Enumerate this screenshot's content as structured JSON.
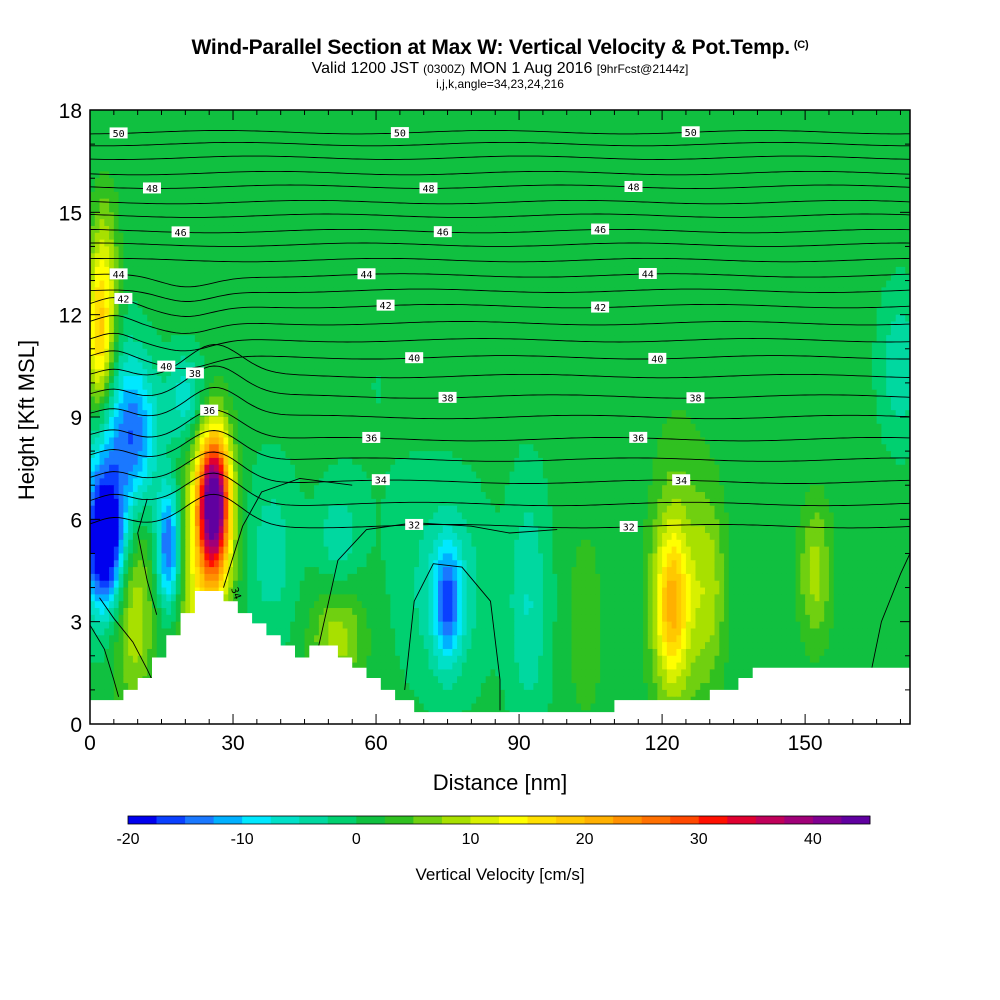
{
  "header": {
    "title": "Wind-Parallel Section at Max W: Vertical Velocity & Pot.Temp.",
    "copyright": "(C)",
    "valid_prefix": "Valid 1200 JST ",
    "valid_z": "(0300Z)",
    "valid_date": " MON 1 Aug 2016 ",
    "forecast": "[9hrFcst@2144z]",
    "indices": "i,j,k,angle=34,23,24,216"
  },
  "chart_data": {
    "type": "heatmap",
    "xlabel": "Distance [nm]",
    "ylabel": "Height [Kft MSL]",
    "xlim": [
      0,
      172
    ],
    "ylim": [
      0,
      18
    ],
    "x_ticks": [
      "0",
      "30",
      "60",
      "90",
      "120",
      "150"
    ],
    "x_tick_values": [
      0,
      30,
      60,
      90,
      120,
      150
    ],
    "y_ticks": [
      "0",
      "3",
      "6",
      "9",
      "12",
      "15",
      "18"
    ],
    "y_tick_values": [
      0,
      3,
      6,
      9,
      12,
      15,
      18
    ],
    "colorbar": {
      "title": "Vertical Velocity [cm/s]",
      "min": -20,
      "max": 45,
      "step": 2.5,
      "tick_labels": [
        "-20",
        "-10",
        "0",
        "10",
        "20",
        "30",
        "40"
      ],
      "tick_values": [
        -20,
        -10,
        0,
        10,
        20,
        30,
        40
      ],
      "colors": [
        "#0000ee",
        "#0a40ff",
        "#1a78ff",
        "#00b0ff",
        "#00e8ff",
        "#00e0c8",
        "#00d8a0",
        "#00d070",
        "#10c040",
        "#30c020",
        "#70d010",
        "#a8e000",
        "#d8f000",
        "#ffff00",
        "#ffe000",
        "#ffc800",
        "#ffb000",
        "#ff9000",
        "#ff7000",
        "#ff4800",
        "#ff1000",
        "#e00030",
        "#c0005a",
        "#a00078",
        "#800090",
        "#6000a0"
      ]
    },
    "background_value": 1,
    "w_cells": [
      {
        "x": 3,
        "y": 5.2,
        "sx": 3,
        "sy": 1.3,
        "v": -20
      },
      {
        "x": 4,
        "y": 7.5,
        "sx": 4,
        "sy": 2.5,
        "v": -12
      },
      {
        "x": 10,
        "y": 8.5,
        "sx": 3,
        "sy": 1.5,
        "v": -12
      },
      {
        "x": 2,
        "y": 11,
        "sx": 2.2,
        "sy": 1.6,
        "v": 18
      },
      {
        "x": 3,
        "y": 13.5,
        "sx": 2,
        "sy": 1.5,
        "v": 8
      },
      {
        "x": 9,
        "y": 3.5,
        "sx": 3,
        "sy": 2,
        "v": 10
      },
      {
        "x": 16.5,
        "y": 5.2,
        "sx": 1.8,
        "sy": 1.3,
        "v": -18
      },
      {
        "x": 20,
        "y": 9.5,
        "sx": 3,
        "sy": 1,
        "v": -8
      },
      {
        "x": 26,
        "y": 6.5,
        "sx": 2.3,
        "sy": 1.4,
        "v": 42
      },
      {
        "x": 24,
        "y": 4.5,
        "sx": 4,
        "sy": 2.5,
        "v": 12
      },
      {
        "x": 38,
        "y": 5,
        "sx": 4,
        "sy": 1.8,
        "v": -5
      },
      {
        "x": 52,
        "y": 2.5,
        "sx": 4,
        "sy": 1,
        "v": 8
      },
      {
        "x": 52,
        "y": 5.5,
        "sx": 3,
        "sy": 1,
        "v": -5
      },
      {
        "x": 75,
        "y": 3.5,
        "sx": 2,
        "sy": 1.2,
        "v": -12
      },
      {
        "x": 75,
        "y": 4,
        "sx": 6,
        "sy": 2,
        "v": -6
      },
      {
        "x": 92,
        "y": 3.5,
        "sx": 3,
        "sy": 2.5,
        "v": -6
      },
      {
        "x": 104,
        "y": 3,
        "sx": 2.5,
        "sy": 2,
        "v": 4
      },
      {
        "x": 122,
        "y": 3.5,
        "sx": 2.5,
        "sy": 1.5,
        "v": 14
      },
      {
        "x": 123,
        "y": 4,
        "sx": 4,
        "sy": 3,
        "v": 7
      },
      {
        "x": 130,
        "y": 4,
        "sx": 2.5,
        "sy": 2,
        "v": 7
      },
      {
        "x": 152,
        "y": 4.5,
        "sx": 2.5,
        "sy": 1.5,
        "v": 8
      },
      {
        "x": 170,
        "y": 10.5,
        "sx": 3,
        "sy": 1.5,
        "v": -6
      },
      {
        "x": 60,
        "y": 10,
        "sx": 8,
        "sy": 5,
        "v": -1
      },
      {
        "x": 110,
        "y": 12,
        "sx": 6,
        "sy": 6,
        "v": -1
      },
      {
        "x": 145,
        "y": 10,
        "sx": 6,
        "sy": 6,
        "v": -1
      }
    ],
    "terrain": [
      [
        0,
        0.7
      ],
      [
        7,
        0.7
      ],
      [
        7,
        1.0
      ],
      [
        10,
        1.0
      ],
      [
        10,
        1.35
      ],
      [
        13,
        1.35
      ],
      [
        13,
        1.95
      ],
      [
        16,
        1.95
      ],
      [
        16,
        2.6
      ],
      [
        19,
        2.6
      ],
      [
        19,
        3.25
      ],
      [
        22,
        3.25
      ],
      [
        22,
        3.9
      ],
      [
        28,
        3.9
      ],
      [
        28,
        3.6
      ],
      [
        31,
        3.6
      ],
      [
        31,
        3.25
      ],
      [
        34,
        3.25
      ],
      [
        34,
        2.95
      ],
      [
        37,
        2.95
      ],
      [
        37,
        2.6
      ],
      [
        40,
        2.6
      ],
      [
        40,
        2.3
      ],
      [
        43,
        2.3
      ],
      [
        43,
        1.95
      ],
      [
        46,
        1.95
      ],
      [
        46,
        2.3
      ],
      [
        52,
        2.3
      ],
      [
        52,
        1.95
      ],
      [
        55,
        1.95
      ],
      [
        55,
        1.65
      ],
      [
        58,
        1.65
      ],
      [
        58,
        1.35
      ],
      [
        61,
        1.35
      ],
      [
        61,
        1.0
      ],
      [
        64,
        1.0
      ],
      [
        64,
        0.7
      ],
      [
        68,
        0.7
      ],
      [
        68,
        0.35
      ],
      [
        110,
        0.35
      ],
      [
        110,
        0.7
      ],
      [
        130,
        0.7
      ],
      [
        130,
        1.0
      ],
      [
        136,
        1.0
      ],
      [
        136,
        1.35
      ],
      [
        139,
        1.35
      ],
      [
        139,
        1.65
      ],
      [
        172,
        1.65
      ]
    ],
    "theta_levels": [
      {
        "base": 17.35,
        "label": "50",
        "label_x": [
          6,
          65,
          126
        ]
      },
      {
        "base": 17.0
      },
      {
        "base": 16.6
      },
      {
        "base": 16.15
      },
      {
        "base": 15.75,
        "label": "48",
        "label_x": [
          13,
          71,
          114
        ]
      },
      {
        "base": 15.3
      },
      {
        "base": 14.9
      },
      {
        "base": 14.45,
        "label": "46",
        "label_x": [
          19,
          74,
          107
        ]
      },
      {
        "base": 14.05
      },
      {
        "base": 13.6
      },
      {
        "base": 13.15,
        "label": "44",
        "label_x": [
          6,
          58,
          117
        ]
      },
      {
        "base": 12.7
      },
      {
        "base": 12.25,
        "label": "42",
        "label_x": [
          7,
          62,
          107
        ]
      },
      {
        "base": 11.75
      },
      {
        "base": 11.25
      },
      {
        "base": 10.75,
        "label": "40",
        "label_x": [
          16,
          68,
          119
        ]
      },
      {
        "base": 10.2
      },
      {
        "base": 9.6,
        "label": "38",
        "label_x": [
          22,
          75,
          127
        ]
      },
      {
        "base": 9.0
      },
      {
        "base": 8.35,
        "label": "36",
        "label_x": [
          25,
          59,
          115
        ]
      },
      {
        "base": 7.75
      },
      {
        "base": 7.1,
        "label": "34",
        "label_x": [
          61,
          124
        ]
      },
      {
        "base": 6.45
      },
      {
        "base": 5.8,
        "label": "32",
        "label_x": [
          68,
          113
        ]
      }
    ],
    "extra_labels": [
      {
        "text": "34",
        "x": 30,
        "y": 3.8
      }
    ]
  }
}
